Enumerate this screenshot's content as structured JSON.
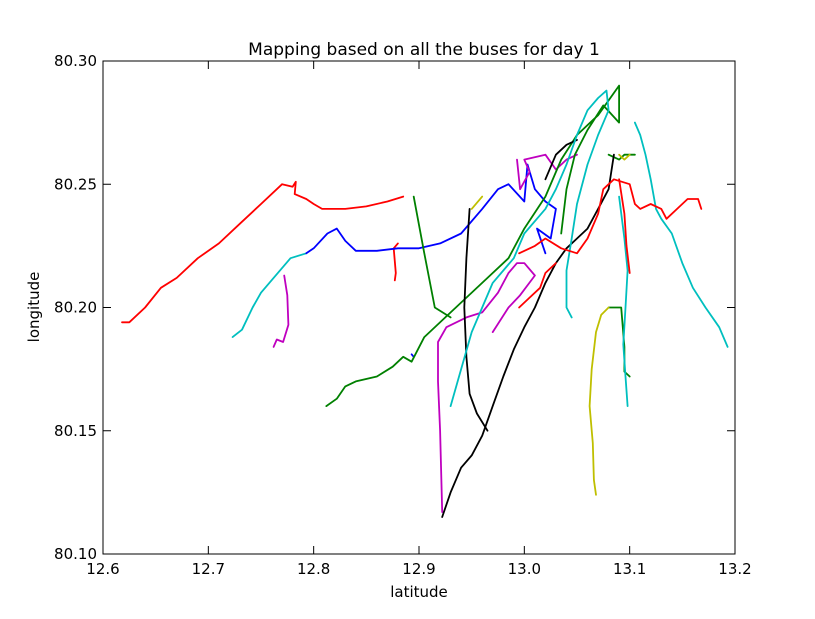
{
  "chart_data": {
    "type": "line",
    "title": "Mapping based on all the buses for day 1",
    "xlabel": "latitude",
    "ylabel": "longitude",
    "xlim": [
      12.6,
      13.2
    ],
    "ylim": [
      80.1,
      80.3
    ],
    "xticks": [
      12.6,
      12.7,
      12.8,
      12.9,
      13.0,
      13.1,
      13.2
    ],
    "xtick_labels": [
      "12.6",
      "12.7",
      "12.8",
      "12.9",
      "13.0",
      "13.1",
      "13.2"
    ],
    "yticks": [
      80.1,
      80.15,
      80.2,
      80.25,
      80.3
    ],
    "ytick_labels": [
      "80.10",
      "80.15",
      "80.20",
      "80.25",
      "80.30"
    ],
    "grid": false,
    "legend": "none",
    "series": [
      {
        "color": "#ff0000",
        "points": [
          [
            12.618,
            80.194
          ],
          [
            12.625,
            80.194
          ],
          [
            12.64,
            80.2
          ],
          [
            12.655,
            80.208
          ],
          [
            12.67,
            80.212
          ],
          [
            12.69,
            80.22
          ],
          [
            12.71,
            80.226
          ],
          [
            12.73,
            80.234
          ],
          [
            12.75,
            80.242
          ],
          [
            12.77,
            80.25
          ],
          [
            12.78,
            80.249
          ],
          [
            12.783,
            80.251
          ],
          [
            12.782,
            80.246
          ],
          [
            12.793,
            80.244
          ],
          [
            12.8,
            80.242
          ],
          [
            12.808,
            80.24
          ],
          [
            12.83,
            80.24
          ],
          [
            12.85,
            80.241
          ],
          [
            12.87,
            80.243
          ],
          [
            12.885,
            80.245
          ]
        ]
      },
      {
        "color": "#ff0000",
        "points": [
          [
            12.877,
            80.211
          ],
          [
            12.878,
            80.214
          ],
          [
            12.876,
            80.224
          ],
          [
            12.88,
            80.226
          ]
        ]
      },
      {
        "color": "#00bfbf",
        "points": [
          [
            12.723,
            80.188
          ],
          [
            12.732,
            80.191
          ],
          [
            12.742,
            80.2
          ],
          [
            12.75,
            80.206
          ],
          [
            12.762,
            80.212
          ],
          [
            12.778,
            80.22
          ],
          [
            12.793,
            80.222
          ]
        ]
      },
      {
        "color": "#0000ff",
        "points": [
          [
            12.793,
            80.222
          ],
          [
            12.8,
            80.224
          ],
          [
            12.813,
            80.23
          ],
          [
            12.822,
            80.232
          ],
          [
            12.83,
            80.227
          ],
          [
            12.84,
            80.223
          ],
          [
            12.86,
            80.223
          ],
          [
            12.88,
            80.224
          ],
          [
            12.9,
            80.224
          ],
          [
            12.92,
            80.226
          ],
          [
            12.94,
            80.23
          ],
          [
            12.96,
            80.24
          ],
          [
            12.975,
            80.248
          ],
          [
            12.985,
            80.25
          ],
          [
            13.0,
            80.243
          ],
          [
            13.003,
            80.258
          ],
          [
            13.01,
            80.248
          ],
          [
            13.02,
            80.243
          ],
          [
            13.03,
            80.24
          ],
          [
            13.025,
            80.228
          ],
          [
            13.012,
            80.232
          ],
          [
            13.02,
            80.222
          ]
        ]
      },
      {
        "color": "#0000ff",
        "points": [
          [
            12.893,
            80.181
          ],
          [
            12.895,
            80.18
          ]
        ]
      },
      {
        "color": "#bf00bf",
        "points": [
          [
            12.772,
            80.213
          ],
          [
            12.775,
            80.205
          ],
          [
            12.776,
            80.193
          ],
          [
            12.771,
            80.186
          ],
          [
            12.765,
            80.187
          ],
          [
            12.762,
            80.184
          ]
        ]
      },
      {
        "color": "#bf00bf",
        "points": [
          [
            12.922,
            80.117
          ],
          [
            12.92,
            80.15
          ],
          [
            12.918,
            80.17
          ],
          [
            12.918,
            80.186
          ],
          [
            12.926,
            80.192
          ],
          [
            12.945,
            80.196
          ],
          [
            12.96,
            80.198
          ],
          [
            12.975,
            80.206
          ],
          [
            12.985,
            80.214
          ],
          [
            12.993,
            80.218
          ],
          [
            13.0,
            80.218
          ],
          [
            13.01,
            80.213
          ],
          [
            12.996,
            80.205
          ],
          [
            12.985,
            80.2
          ],
          [
            12.97,
            80.19
          ]
        ]
      },
      {
        "color": "#bf00bf",
        "points": [
          [
            12.993,
            80.26
          ],
          [
            12.996,
            80.248
          ],
          [
            13.005,
            80.255
          ],
          [
            13.0,
            80.26
          ],
          [
            13.02,
            80.262
          ],
          [
            13.03,
            80.256
          ],
          [
            13.04,
            80.26
          ],
          [
            13.05,
            80.262
          ]
        ]
      },
      {
        "color": "#008000",
        "points": [
          [
            12.812,
            80.16
          ],
          [
            12.822,
            80.163
          ],
          [
            12.83,
            80.168
          ],
          [
            12.84,
            80.17
          ],
          [
            12.86,
            80.172
          ],
          [
            12.875,
            80.176
          ],
          [
            12.885,
            80.18
          ],
          [
            12.893,
            80.178
          ],
          [
            12.905,
            80.188
          ],
          [
            12.925,
            80.196
          ],
          [
            12.945,
            80.204
          ],
          [
            12.965,
            80.212
          ],
          [
            12.985,
            80.22
          ],
          [
            13.0,
            80.232
          ],
          [
            13.02,
            80.245
          ],
          [
            13.035,
            80.26
          ],
          [
            13.05,
            80.27
          ],
          [
            13.07,
            80.278
          ],
          [
            13.09,
            80.29
          ],
          [
            13.09,
            80.275
          ],
          [
            13.075,
            80.282
          ],
          [
            13.06,
            80.272
          ],
          [
            13.048,
            80.262
          ],
          [
            13.04,
            80.248
          ],
          [
            13.035,
            80.23
          ]
        ]
      },
      {
        "color": "#008000",
        "points": [
          [
            12.895,
            80.245
          ],
          [
            12.905,
            80.222
          ],
          [
            12.915,
            80.2
          ],
          [
            12.93,
            80.196
          ]
        ]
      },
      {
        "color": "#008000",
        "points": [
          [
            13.08,
            80.2
          ],
          [
            13.092,
            80.2
          ],
          [
            13.095,
            80.184
          ],
          [
            13.095,
            80.174
          ],
          [
            13.1,
            80.172
          ]
        ]
      },
      {
        "color": "#008000",
        "points": [
          [
            13.08,
            80.262
          ],
          [
            13.09,
            80.26
          ],
          [
            13.095,
            80.262
          ],
          [
            13.105,
            80.262
          ]
        ]
      },
      {
        "color": "#000000",
        "points": [
          [
            12.922,
            80.115
          ],
          [
            12.93,
            80.125
          ],
          [
            12.94,
            80.135
          ],
          [
            12.95,
            80.14
          ],
          [
            12.96,
            80.148
          ],
          [
            12.97,
            80.16
          ],
          [
            12.98,
            80.172
          ],
          [
            12.99,
            80.183
          ],
          [
            13.0,
            80.192
          ],
          [
            13.01,
            80.2
          ],
          [
            13.02,
            80.21
          ],
          [
            13.03,
            80.218
          ],
          [
            13.04,
            80.224
          ],
          [
            13.05,
            80.228
          ],
          [
            13.06,
            80.232
          ],
          [
            13.07,
            80.24
          ],
          [
            13.08,
            80.248
          ],
          [
            13.085,
            80.262
          ]
        ]
      },
      {
        "color": "#000000",
        "points": [
          [
            12.948,
            80.24
          ],
          [
            12.945,
            80.22
          ],
          [
            12.943,
            80.2
          ],
          [
            12.945,
            80.18
          ],
          [
            12.948,
            80.165
          ],
          [
            12.955,
            80.157
          ],
          [
            12.965,
            80.15
          ]
        ]
      },
      {
        "color": "#000000",
        "points": [
          [
            13.02,
            80.252
          ],
          [
            13.03,
            80.262
          ],
          [
            13.04,
            80.266
          ],
          [
            13.05,
            80.268
          ]
        ]
      },
      {
        "color": "#bfbf00",
        "points": [
          [
            13.068,
            80.124
          ],
          [
            13.066,
            80.13
          ],
          [
            13.065,
            80.145
          ],
          [
            13.062,
            80.16
          ],
          [
            13.064,
            80.175
          ],
          [
            13.068,
            80.19
          ],
          [
            13.073,
            80.197
          ],
          [
            13.08,
            80.2
          ]
        ]
      },
      {
        "color": "#bfbf00",
        "points": [
          [
            13.09,
            80.262
          ],
          [
            13.095,
            80.26
          ],
          [
            13.1,
            80.262
          ]
        ]
      },
      {
        "color": "#bfbf00",
        "points": [
          [
            12.95,
            80.24
          ],
          [
            12.96,
            80.245
          ]
        ]
      },
      {
        "color": "#00bfbf",
        "points": [
          [
            12.93,
            80.16
          ],
          [
            12.95,
            80.19
          ],
          [
            12.97,
            80.21
          ],
          [
            12.99,
            80.22
          ],
          [
            13.0,
            80.23
          ],
          [
            13.02,
            80.24
          ],
          [
            13.03,
            80.248
          ],
          [
            13.04,
            80.258
          ],
          [
            13.05,
            80.27
          ],
          [
            13.06,
            80.28
          ],
          [
            13.07,
            80.285
          ],
          [
            13.078,
            80.288
          ],
          [
            13.08,
            80.28
          ],
          [
            13.07,
            80.27
          ],
          [
            13.06,
            80.258
          ],
          [
            13.05,
            80.242
          ],
          [
            13.045,
            80.228
          ],
          [
            13.04,
            80.215
          ],
          [
            13.04,
            80.2
          ],
          [
            13.045,
            80.196
          ]
        ]
      },
      {
        "color": "#00bfbf",
        "points": [
          [
            13.09,
            80.245
          ],
          [
            13.095,
            80.228
          ],
          [
            13.098,
            80.215
          ],
          [
            13.096,
            80.2
          ],
          [
            13.094,
            80.185
          ],
          [
            13.096,
            80.172
          ],
          [
            13.098,
            80.16
          ]
        ]
      },
      {
        "color": "#00bfbf",
        "points": [
          [
            13.105,
            80.275
          ],
          [
            13.11,
            80.27
          ],
          [
            13.115,
            80.262
          ],
          [
            13.12,
            80.252
          ],
          [
            13.125,
            80.24
          ],
          [
            13.13,
            80.236
          ],
          [
            13.14,
            80.23
          ],
          [
            13.15,
            80.218
          ],
          [
            13.16,
            80.208
          ],
          [
            13.172,
            80.2
          ],
          [
            13.185,
            80.192
          ],
          [
            13.193,
            80.184
          ]
        ]
      },
      {
        "color": "#ff0000",
        "points": [
          [
            12.995,
            80.222
          ],
          [
            13.01,
            80.225
          ],
          [
            13.02,
            80.228
          ],
          [
            13.035,
            80.224
          ],
          [
            13.05,
            80.222
          ],
          [
            13.06,
            80.228
          ],
          [
            13.07,
            80.238
          ],
          [
            13.075,
            80.248
          ],
          [
            13.085,
            80.252
          ],
          [
            13.1,
            80.25
          ],
          [
            13.105,
            80.242
          ],
          [
            13.11,
            80.24
          ],
          [
            13.12,
            80.242
          ],
          [
            13.13,
            80.24
          ],
          [
            13.135,
            80.236
          ],
          [
            13.145,
            80.24
          ],
          [
            13.155,
            80.244
          ],
          [
            13.165,
            80.244
          ],
          [
            13.168,
            80.24
          ]
        ]
      },
      {
        "color": "#ff0000",
        "points": [
          [
            12.995,
            80.2
          ],
          [
            13.005,
            80.204
          ],
          [
            13.015,
            80.208
          ],
          [
            13.02,
            80.214
          ],
          [
            13.03,
            80.218
          ]
        ]
      },
      {
        "color": "#ff0000",
        "points": [
          [
            13.09,
            80.252
          ],
          [
            13.095,
            80.238
          ],
          [
            13.097,
            80.225
          ],
          [
            13.1,
            80.214
          ]
        ]
      }
    ]
  }
}
